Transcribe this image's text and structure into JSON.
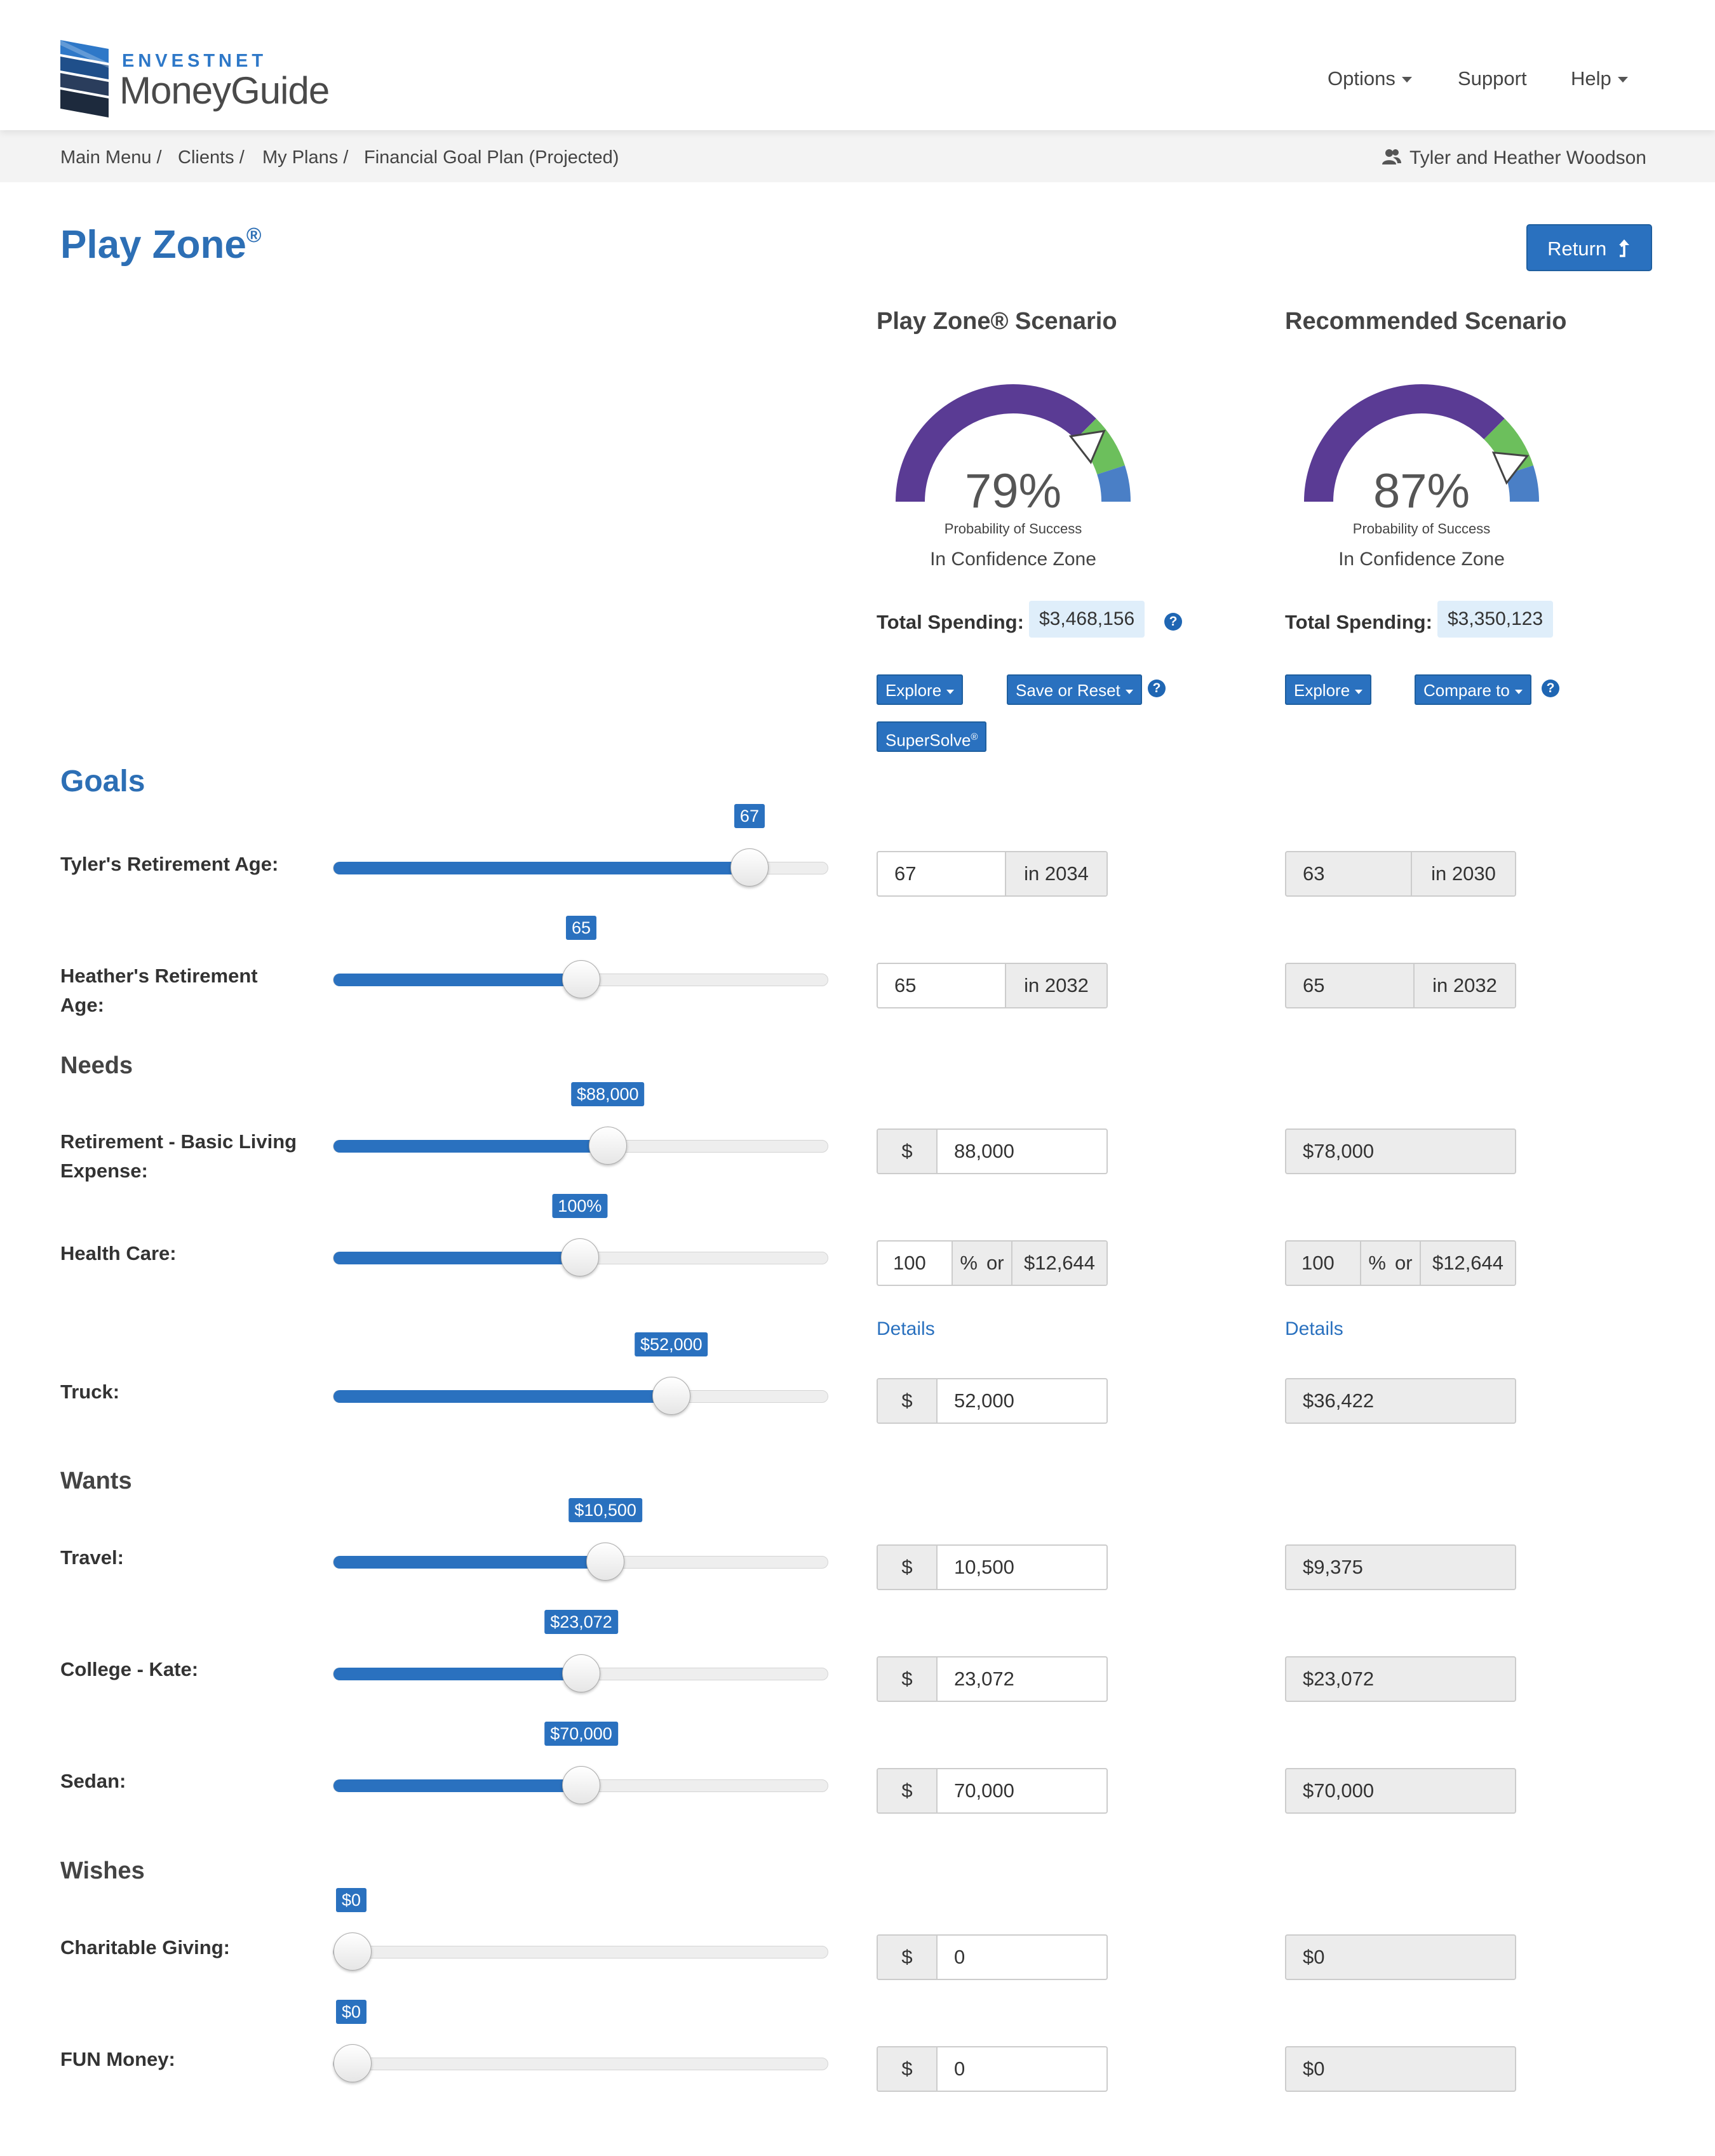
{
  "header": {
    "brand_top": "ENVESTNET",
    "brand_main": "MoneyGuide",
    "nav": {
      "options": "Options",
      "support": "Support",
      "help": "Help"
    }
  },
  "breadcrumb": {
    "items": [
      "Main Menu",
      "Clients",
      "My Plans",
      "Financial Goal Plan (Projected)"
    ],
    "user": "Tyler and Heather Woodson"
  },
  "page": {
    "title": "Play Zone",
    "reg": "®",
    "return_label": "Return"
  },
  "scenarios": {
    "playzone": {
      "title": "Play Zone® Scenario",
      "probability": "79%",
      "probability_value": 79,
      "prob_label": "Probability of Success",
      "zone": "In Confidence Zone",
      "spending_label": "Total Spending:",
      "spending": "$3,468,156",
      "btn_explore": "Explore",
      "btn_save": "Save or Reset",
      "btn_supersolve": "SuperSolve",
      "btn_supersolve_reg": "®"
    },
    "recommended": {
      "title": "Recommended Scenario",
      "probability": "87%",
      "probability_value": 87,
      "prob_label": "Probability of Success",
      "zone": "In Confidence Zone",
      "spending_label": "Total Spending:",
      "spending": "$3,350,123",
      "btn_explore": "Explore",
      "btn_compare": "Compare to"
    }
  },
  "sections": {
    "goals": "Goals",
    "needs": "Needs",
    "wants": "Wants",
    "wishes": "Wishes"
  },
  "rows": {
    "tyler_age": {
      "label": "Tyler's Retirement Age:",
      "slider": "67",
      "level": 0.868,
      "pz_value": "67",
      "pz_suffix": "in 2034",
      "rec_value": "63",
      "rec_suffix": "in 2030"
    },
    "heather_age": {
      "label": "Heather's Retirement Age:",
      "slider": "65",
      "level": 0.5,
      "pz_value": "65",
      "pz_suffix": "in 2032",
      "rec_value": "65",
      "rec_suffix": "in 2032"
    },
    "basic_living": {
      "label": "Retirement - Basic Living Expense:",
      "slider": "$88,000",
      "level": 0.558,
      "currency": "$",
      "pz_value": "88,000",
      "rec_value": "$78,000"
    },
    "health_care": {
      "label": "Health Care:",
      "slider": "100%",
      "level": 0.497,
      "pz_pct": "100",
      "pz_pct_sym": "%",
      "pz_or": "or",
      "pz_amount": "$12,644",
      "rec_pct": "100",
      "rec_pct_sym": "%",
      "rec_or": "or",
      "rec_amount": "$12,644",
      "details": "Details"
    },
    "truck": {
      "label": "Truck:",
      "slider": "$52,000",
      "level": 0.697,
      "currency": "$",
      "pz_value": "52,000",
      "rec_value": "$36,422"
    },
    "travel": {
      "label": "Travel:",
      "slider": "$10,500",
      "level": 0.553,
      "currency": "$",
      "pz_value": "10,500",
      "rec_value": "$9,375"
    },
    "college": {
      "label": "College - Kate:",
      "slider": "$23,072",
      "level": 0.5,
      "currency": "$",
      "pz_value": "23,072",
      "rec_value": "$23,072"
    },
    "sedan": {
      "label": "Sedan:",
      "slider": "$70,000",
      "level": 0.5,
      "currency": "$",
      "pz_value": "70,000",
      "rec_value": "$70,000"
    },
    "charitable": {
      "label": "Charitable Giving:",
      "slider": "$0",
      "level": 0.0,
      "currency": "$",
      "pz_value": "0",
      "rec_value": "$0"
    },
    "fun": {
      "label": "FUN Money:",
      "slider": "$0",
      "level": 0.0,
      "currency": "$",
      "pz_value": "0",
      "rec_value": "$0"
    }
  },
  "icons": {
    "logo": "envestnet-logo-icon",
    "user": "users-icon",
    "return": "arrow-up-icon",
    "help": "question-circle-icon"
  },
  "colors": {
    "brand_blue": "#2a71bf",
    "title_blue": "#2d6fb5",
    "gauge_purple": "#5a3b94",
    "gauge_green": "#6cbf5c",
    "gauge_blue": "#4a7fc6",
    "spending_bg": "#dfeefa"
  }
}
